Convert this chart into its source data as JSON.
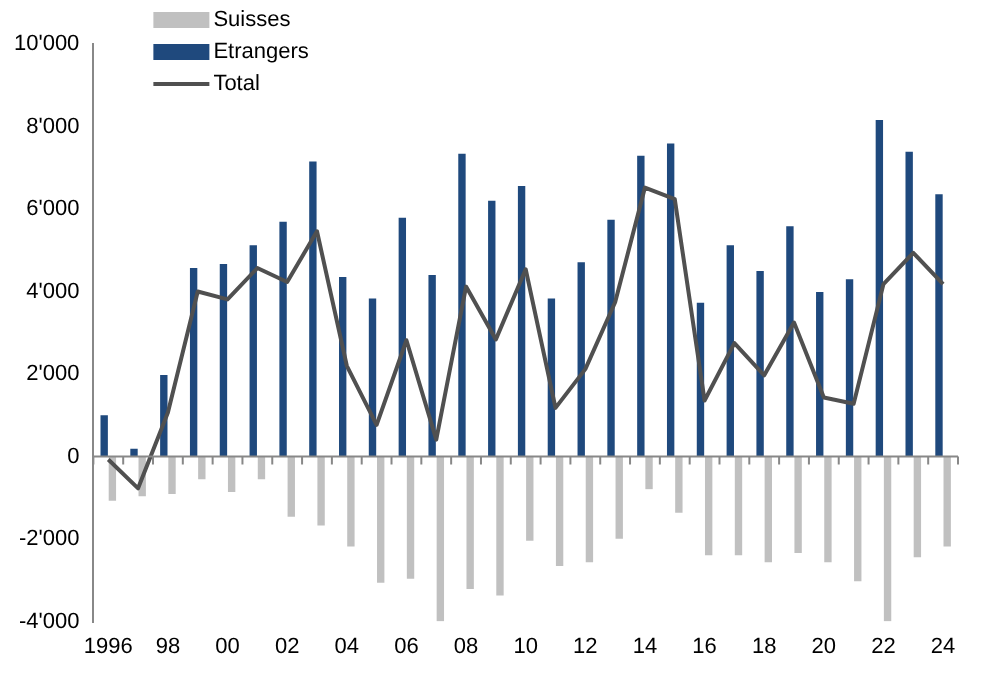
{
  "chart_data": {
    "type": "bar",
    "categories": [
      "1996",
      null,
      "98",
      null,
      "00",
      null,
      "02",
      null,
      "04",
      null,
      "06",
      null,
      "08",
      null,
      "10",
      null,
      "12",
      null,
      "14",
      null,
      "16",
      null,
      "18",
      null,
      "20",
      null,
      "22",
      null,
      "24"
    ],
    "series": [
      {
        "name": "Suisses",
        "color": "#c0c0c0",
        "values": [
          -1070,
          -960,
          -910,
          -550,
          -860,
          -550,
          -1460,
          -1670,
          -2180,
          -3060,
          -2960,
          -3990,
          -3210,
          -3370,
          -2040,
          -2650,
          -2560,
          -1990,
          -790,
          -1360,
          -2390,
          -2390,
          -2560,
          -2340,
          -2560,
          -3020,
          -3990,
          -2440,
          -2180
        ]
      },
      {
        "name": "Etrangers",
        "color": "#1f497d",
        "values": [
          1000,
          190,
          1980,
          4570,
          4670,
          5120,
          5690,
          7150,
          4350,
          3830,
          5790,
          4400,
          7340,
          6200,
          6560,
          3830,
          4710,
          5740,
          7290,
          7590,
          3730,
          5120,
          4500,
          5580,
          3990,
          4300,
          8160,
          7390,
          6360
        ]
      },
      {
        "name": "Total",
        "type": "line",
        "color": "#505050",
        "values": [
          -70,
          -770,
          1070,
          4000,
          3810,
          4570,
          4230,
          5460,
          2200,
          770,
          2820,
          410,
          4120,
          2840,
          4540,
          1180,
          2120,
          3740,
          6520,
          6240,
          1360,
          2750,
          1970,
          3250,
          1430,
          1280,
          4180,
          4940,
          4180
        ]
      }
    ],
    "ylim": [
      -4000,
      10000
    ],
    "yticks": [
      {
        "value": -4000,
        "label": "-4'000"
      },
      {
        "value": -2000,
        "label": "-2'000"
      },
      {
        "value": 0,
        "label": "0"
      },
      {
        "value": 2000,
        "label": "2'000"
      },
      {
        "value": 4000,
        "label": "4'000"
      },
      {
        "value": 6000,
        "label": "6'000"
      },
      {
        "value": 8000,
        "label": "8'000"
      },
      {
        "value": 10000,
        "label": "10'000"
      }
    ],
    "legend": "top left",
    "marker": "none"
  }
}
